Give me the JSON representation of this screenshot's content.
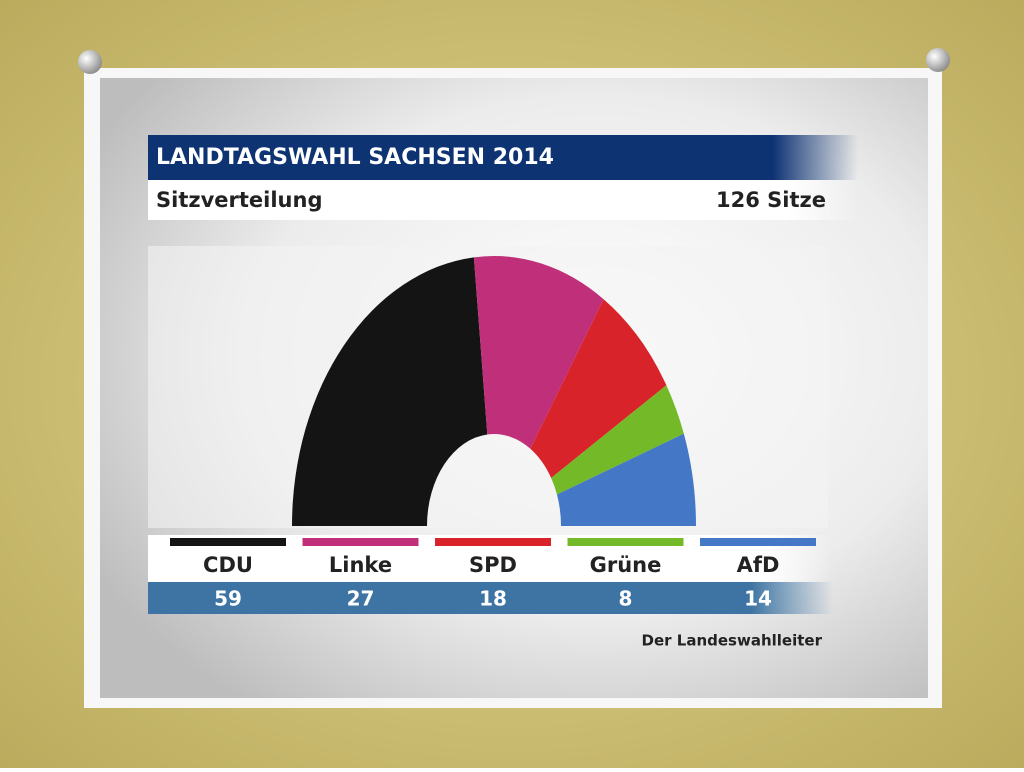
{
  "chart_data": {
    "type": "parliament",
    "title": "LANDTAGSWAHL SACHSEN 2014",
    "subtitle": "Sitzverteilung",
    "total_label": "126 Sitze",
    "source": "Der Landeswahlleiter",
    "categories": [
      "CDU",
      "Linke",
      "SPD",
      "Grüne",
      "AfD"
    ],
    "values": [
      59,
      27,
      18,
      8,
      14
    ],
    "colors": [
      "#141414",
      "#c0307a",
      "#d9232a",
      "#74b927",
      "#4478c6"
    ]
  }
}
